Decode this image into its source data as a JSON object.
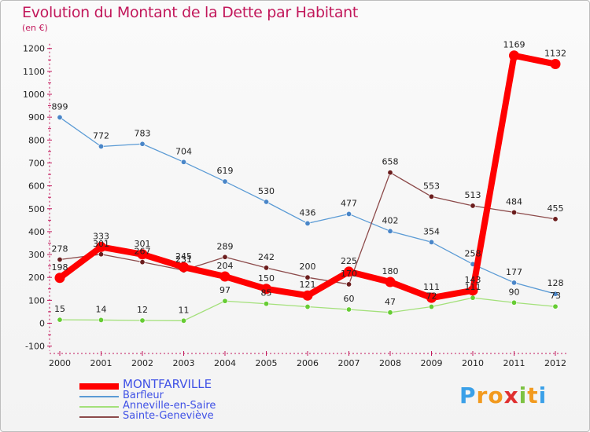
{
  "chart_data": {
    "type": "line",
    "title": "Evolution du Montant de la Dette par Habitant",
    "ylabel": "(en €)",
    "xlabel": "",
    "categories": [
      "2000",
      "2001",
      "2002",
      "2003",
      "2004",
      "2005",
      "2006",
      "2007",
      "2008",
      "2009",
      "2010",
      "2011",
      "2012"
    ],
    "ylim": [
      -100,
      1200
    ],
    "yticks": [
      -100,
      0,
      100,
      200,
      300,
      400,
      500,
      600,
      700,
      800,
      900,
      1000,
      1100,
      1200
    ],
    "grid": false,
    "legend_position": "bottom-left",
    "series": [
      {
        "name": "Barfleur",
        "color": "#5b9bd5",
        "marker": "#4a86c8",
        "emphasis": false,
        "values": [
          899,
          772,
          783,
          704,
          619,
          530,
          436,
          477,
          402,
          354,
          258,
          177,
          128
        ],
        "labels": [
          "899",
          "772",
          "783",
          "704",
          "619",
          "530",
          "436",
          "477",
          "402",
          "354",
          "258",
          "177",
          "128"
        ]
      },
      {
        "name": "Anneville-en-Saire",
        "color": "#a3e07a",
        "marker": "#66cc33",
        "emphasis": false,
        "values": [
          15,
          14,
          12,
          11,
          97,
          85,
          72,
          60,
          47,
          72,
          111,
          90,
          73
        ],
        "labels": [
          "15",
          "14",
          "12",
          "11",
          "97",
          "85",
          "",
          "60",
          "47",
          "72",
          "111",
          "90",
          "73"
        ]
      },
      {
        "name": "Sainte-Geneviève",
        "color": "#8c4a4a",
        "marker": "#6b1d1d",
        "emphasis": false,
        "values": [
          278,
          301,
          267,
          231,
          289,
          242,
          200,
          170,
          658,
          553,
          513,
          484,
          455
        ],
        "labels": [
          "278",
          "301",
          "267",
          "231",
          "289",
          "242",
          "200",
          "170",
          "658",
          "553",
          "513",
          "484",
          "455"
        ]
      },
      {
        "name": "MONTFARVILLE",
        "color": "#ff0000",
        "marker": "#ff0000",
        "emphasis": true,
        "values": [
          198,
          333,
          301,
          245,
          204,
          150,
          121,
          225,
          180,
          111,
          143,
          1169,
          1132
        ],
        "labels": [
          "198",
          "333",
          "301",
          "245",
          "204",
          "150",
          "121",
          "225",
          "180",
          "111",
          "143",
          "1169",
          "1132"
        ]
      }
    ],
    "legend_order": [
      "MONTFARVILLE",
      "Barfleur",
      "Anneville-en-Saire",
      "Sainte-Geneviève"
    ]
  },
  "logo": {
    "letters": [
      "P",
      "r",
      "o",
      "x",
      "i",
      "t",
      "i"
    ],
    "colors": [
      "#3aa0e8",
      "#f29a1e",
      "#f29a1e",
      "#e03030",
      "#7dc242",
      "#f29a1e",
      "#3aa0e8"
    ]
  }
}
